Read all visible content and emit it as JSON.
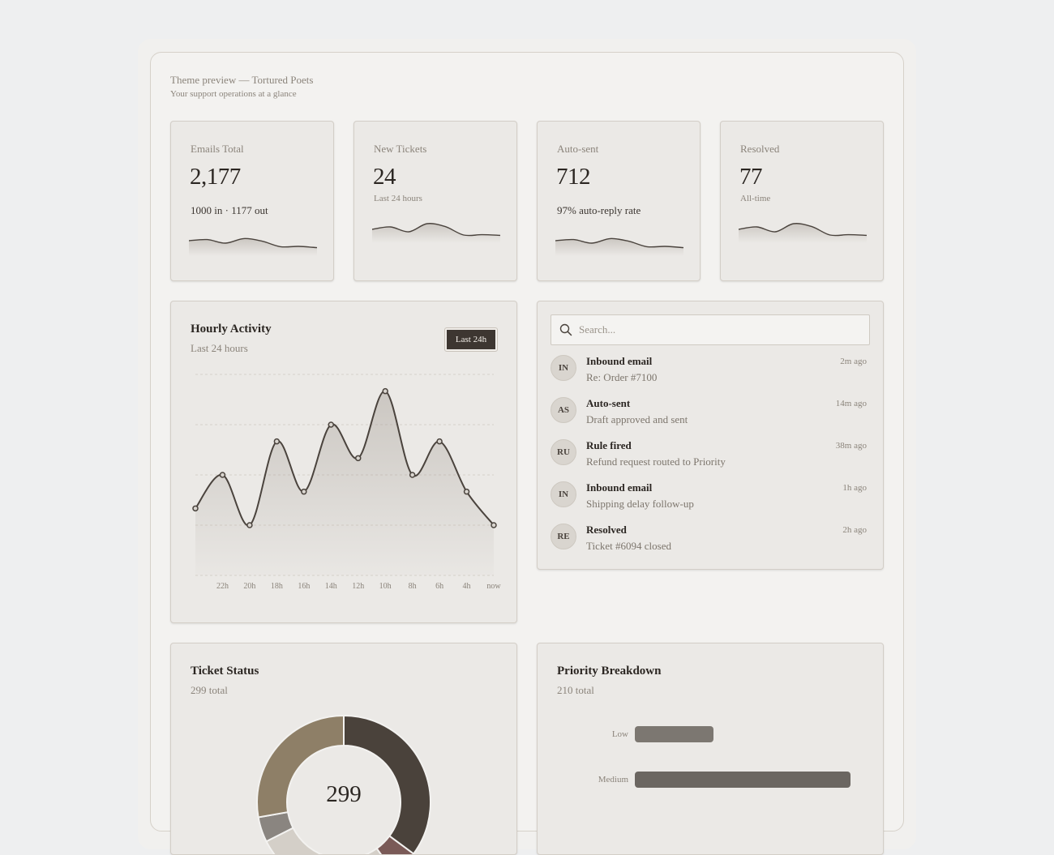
{
  "header": {
    "title": "Theme preview — Tortured Poets",
    "subtitle": "Your support operations at a glance"
  },
  "stats": [
    {
      "label": "Emails Total",
      "value": "2,177",
      "sub": "1000 in · 1177 out",
      "sub_style": "large",
      "spark": [
        0.55,
        0.62,
        0.4,
        0.68,
        0.52,
        0.18,
        0.2,
        0.12
      ]
    },
    {
      "label": "New Tickets",
      "value": "24",
      "sub": "Last 24 hours",
      "sub_style": "small",
      "spark": [
        0.45,
        0.6,
        0.3,
        0.8,
        0.62,
        0.1,
        0.12,
        0.08
      ]
    },
    {
      "label": "Auto-sent",
      "value": "712",
      "sub": "97% auto-reply rate",
      "sub_style": "large",
      "spark": [
        0.55,
        0.62,
        0.4,
        0.68,
        0.52,
        0.18,
        0.2,
        0.12
      ]
    },
    {
      "label": "Resolved",
      "value": "77",
      "sub": "All-time",
      "sub_style": "small",
      "spark": [
        0.45,
        0.6,
        0.3,
        0.8,
        0.62,
        0.1,
        0.12,
        0.08
      ]
    }
  ],
  "hourly": {
    "title": "Hourly Activity",
    "subtitle": "Last 24 hours",
    "range_button": "Last 24h",
    "chart_data": {
      "type": "area",
      "x": [
        "",
        "22h",
        "20h",
        "18h",
        "16h",
        "14h",
        "12h",
        "10h",
        "8h",
        "6h",
        "4h",
        "now"
      ],
      "y": [
        4,
        6,
        3,
        8,
        5,
        9,
        7,
        11,
        6,
        8,
        5,
        3
      ],
      "ylim": [
        0,
        12
      ],
      "grid": true
    }
  },
  "search": {
    "placeholder": "Search..."
  },
  "feed": [
    {
      "initials": "IN",
      "title": "Inbound email",
      "desc": "Re: Order #7100",
      "time": "2m ago"
    },
    {
      "initials": "AS",
      "title": "Auto-sent",
      "desc": "Draft approved and sent",
      "time": "14m ago"
    },
    {
      "initials": "RU",
      "title": "Rule fired",
      "desc": "Refund request routed to Priority",
      "time": "38m ago"
    },
    {
      "initials": "IN",
      "title": "Inbound email",
      "desc": "Shipping delay follow-up",
      "time": "1h ago"
    },
    {
      "initials": "RE",
      "title": "Resolved",
      "desc": "Ticket #6094 closed",
      "time": "2h ago"
    }
  ],
  "ticket_status": {
    "title": "Ticket Status",
    "subtitle": "299 total",
    "center_value": "299",
    "chart_data": {
      "type": "pie",
      "slices": [
        {
          "value": 105,
          "color": "#4a423b"
        },
        {
          "value": 15,
          "color": "#7a5a57"
        },
        {
          "value": 82,
          "color": "#d4cfc8"
        },
        {
          "value": 14,
          "color": "#8a8580"
        },
        {
          "value": 83,
          "color": "#8e7f67"
        }
      ]
    }
  },
  "priority": {
    "title": "Priority Breakdown",
    "subtitle": "210 total",
    "chart_data": {
      "type": "bar",
      "orientation": "horizontal",
      "categories": [
        "Low",
        "Medium"
      ],
      "values": [
        38,
        104
      ],
      "xlim": [
        0,
        104
      ],
      "colors": [
        "#7c7771",
        "#6b6661"
      ]
    }
  }
}
